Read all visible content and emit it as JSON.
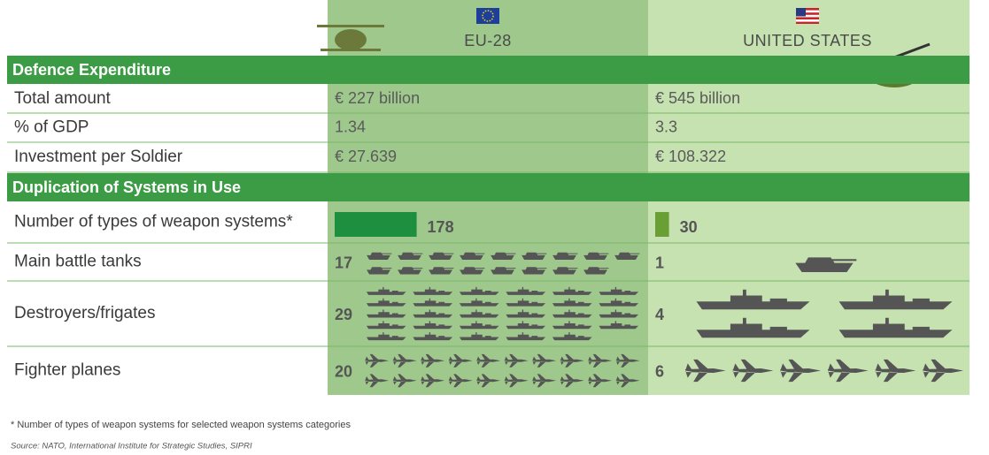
{
  "header": {
    "columns": [
      "EU-28",
      "UNITED STATES"
    ]
  },
  "sections": [
    {
      "title": "Defence Expenditure",
      "rows": [
        {
          "label": "Total amount",
          "values": [
            "€ 227 billion",
            "€ 545 billion"
          ]
        },
        {
          "label": "% of GDP",
          "values": [
            "1.34",
            "3.3"
          ]
        },
        {
          "label": "Investment per Soldier",
          "values": [
            "€ 27.639",
            "€ 108.322"
          ]
        }
      ]
    },
    {
      "title": "Duplication of Systems in Use",
      "rows": [
        {
          "label": "Number of types of weapon systems*",
          "values": [
            178,
            30
          ],
          "colors": [
            "#1e8f3e",
            "#6a9f35"
          ]
        },
        {
          "label": "Main battle tanks",
          "values": [
            17,
            1
          ]
        },
        {
          "label": "Destroyers/frigates",
          "values": [
            29,
            4
          ]
        },
        {
          "label": "Fighter planes",
          "values": [
            20,
            6
          ]
        }
      ]
    }
  ],
  "footnote": "* Number of types of weapon systems for selected weapon systems categories",
  "source": "Source: NATO, International Institute for Strategic Studies, SIPRI"
}
